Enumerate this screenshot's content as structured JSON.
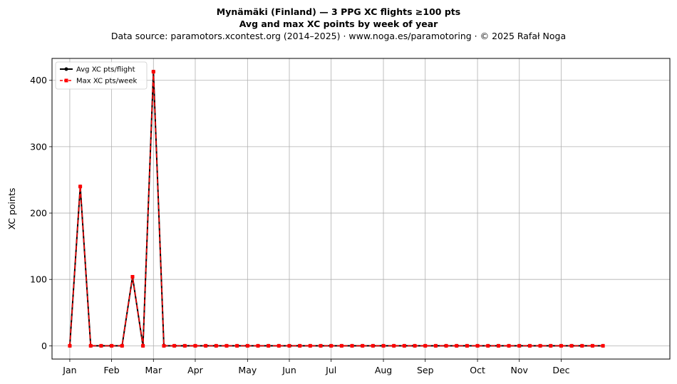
{
  "title_line1": "Mynämäki (Finland)  —  3 PPG XC flights ≥100 pts",
  "title_line2": "Avg and max XC points by week of year",
  "subtitle": "Data source: paramotors.xcontest.org (2014–2025)  ·  www.noga.es/paramotoring  ·  © 2025 Rafał Noga",
  "chart_data": {
    "type": "line",
    "title": "Mynämäki (Finland)  —  3 PPG XC flights ≥100 pts\nAvg and max XC points by week of year",
    "xlabel": "",
    "ylabel": "XC points",
    "x_unit": "week of year",
    "xlim": [
      -1.7,
      57.4
    ],
    "ylim": [
      -20,
      433
    ],
    "y_ticks": [
      0,
      100,
      200,
      300,
      400
    ],
    "x_ticks": [
      {
        "week": 0,
        "label": "Jan"
      },
      {
        "week": 4,
        "label": "Feb"
      },
      {
        "week": 8,
        "label": "Mar"
      },
      {
        "week": 12,
        "label": "Apr"
      },
      {
        "week": 17,
        "label": "May"
      },
      {
        "week": 21,
        "label": "Jun"
      },
      {
        "week": 25,
        "label": "Jul"
      },
      {
        "week": 30,
        "label": "Aug"
      },
      {
        "week": 34,
        "label": "Sep"
      },
      {
        "week": 39,
        "label": "Oct"
      },
      {
        "week": 43,
        "label": "Nov"
      },
      {
        "week": 47,
        "label": "Dec"
      }
    ],
    "grid": true,
    "legend_position": "top-left",
    "x": [
      0,
      1,
      2,
      3,
      4,
      5,
      6,
      7,
      8,
      9,
      10,
      11,
      12,
      13,
      14,
      15,
      16,
      17,
      18,
      19,
      20,
      21,
      22,
      23,
      24,
      25,
      26,
      27,
      28,
      29,
      30,
      31,
      32,
      33,
      34,
      35,
      36,
      37,
      38,
      39,
      40,
      41,
      42,
      43,
      44,
      45,
      46,
      47,
      48,
      49,
      50,
      51
    ],
    "series": [
      {
        "name": "Avg XC pts/flight",
        "color": "#000000",
        "style": "solid",
        "marker": "circle",
        "values": [
          0,
          240,
          0,
          0,
          0,
          0,
          104,
          0,
          413,
          0,
          0,
          0,
          0,
          0,
          0,
          0,
          0,
          0,
          0,
          0,
          0,
          0,
          0,
          0,
          0,
          0,
          0,
          0,
          0,
          0,
          0,
          0,
          0,
          0,
          0,
          0,
          0,
          0,
          0,
          0,
          0,
          0,
          0,
          0,
          0,
          0,
          0,
          0,
          0,
          0,
          0,
          0
        ]
      },
      {
        "name": "Max XC pts/week",
        "color": "#ff0000",
        "style": "dashed",
        "marker": "square",
        "values": [
          0,
          240,
          0,
          0,
          0,
          0,
          104,
          0,
          413,
          0,
          0,
          0,
          0,
          0,
          0,
          0,
          0,
          0,
          0,
          0,
          0,
          0,
          0,
          0,
          0,
          0,
          0,
          0,
          0,
          0,
          0,
          0,
          0,
          0,
          0,
          0,
          0,
          0,
          0,
          0,
          0,
          0,
          0,
          0,
          0,
          0,
          0,
          0,
          0,
          0,
          0,
          0
        ]
      }
    ]
  }
}
